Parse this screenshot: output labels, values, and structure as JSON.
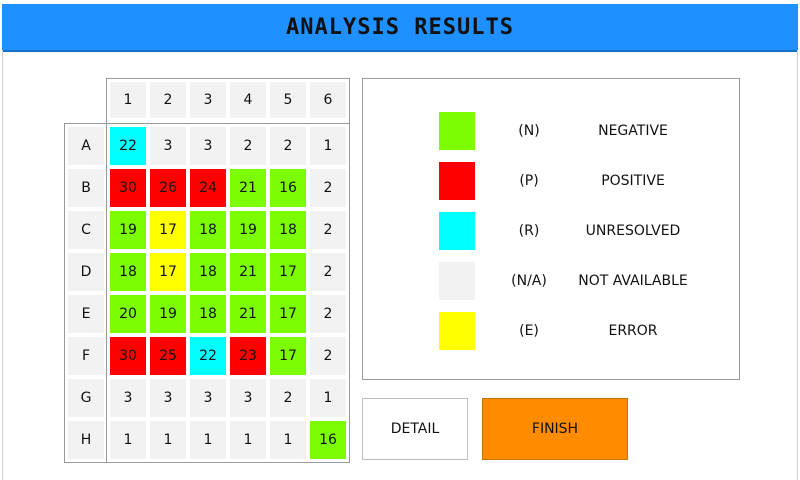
{
  "header": {
    "title": "ANALYSIS RESULTS"
  },
  "colors": {
    "N": "#7cfc00",
    "P": "#ff0000",
    "R": "#00ffff",
    "NA": "#f2f2f2",
    "E": "#ffff00",
    "header_bar": "#1e90ff",
    "finish_button": "#ff8c00"
  },
  "plate": {
    "columns": [
      "1",
      "2",
      "3",
      "4",
      "5",
      "6"
    ],
    "rows": [
      {
        "label": "A",
        "cells": [
          {
            "value": "22",
            "status": "R"
          },
          {
            "value": "3",
            "status": "NA"
          },
          {
            "value": "3",
            "status": "NA"
          },
          {
            "value": "2",
            "status": "NA"
          },
          {
            "value": "2",
            "status": "NA"
          },
          {
            "value": "1",
            "status": "NA"
          }
        ]
      },
      {
        "label": "B",
        "cells": [
          {
            "value": "30",
            "status": "P"
          },
          {
            "value": "26",
            "status": "P"
          },
          {
            "value": "24",
            "status": "P"
          },
          {
            "value": "21",
            "status": "N"
          },
          {
            "value": "16",
            "status": "N"
          },
          {
            "value": "2",
            "status": "NA"
          }
        ]
      },
      {
        "label": "C",
        "cells": [
          {
            "value": "19",
            "status": "N"
          },
          {
            "value": "17",
            "status": "E"
          },
          {
            "value": "18",
            "status": "N"
          },
          {
            "value": "19",
            "status": "N"
          },
          {
            "value": "18",
            "status": "N"
          },
          {
            "value": "2",
            "status": "NA"
          }
        ]
      },
      {
        "label": "D",
        "cells": [
          {
            "value": "18",
            "status": "N"
          },
          {
            "value": "17",
            "status": "E"
          },
          {
            "value": "18",
            "status": "N"
          },
          {
            "value": "21",
            "status": "N"
          },
          {
            "value": "17",
            "status": "N"
          },
          {
            "value": "2",
            "status": "NA"
          }
        ]
      },
      {
        "label": "E",
        "cells": [
          {
            "value": "20",
            "status": "N"
          },
          {
            "value": "19",
            "status": "N"
          },
          {
            "value": "18",
            "status": "N"
          },
          {
            "value": "21",
            "status": "N"
          },
          {
            "value": "17",
            "status": "N"
          },
          {
            "value": "2",
            "status": "NA"
          }
        ]
      },
      {
        "label": "F",
        "cells": [
          {
            "value": "30",
            "status": "P"
          },
          {
            "value": "25",
            "status": "P"
          },
          {
            "value": "22",
            "status": "R"
          },
          {
            "value": "23",
            "status": "P"
          },
          {
            "value": "17",
            "status": "N"
          },
          {
            "value": "2",
            "status": "NA"
          }
        ]
      },
      {
        "label": "G",
        "cells": [
          {
            "value": "3",
            "status": "NA"
          },
          {
            "value": "3",
            "status": "NA"
          },
          {
            "value": "3",
            "status": "NA"
          },
          {
            "value": "3",
            "status": "NA"
          },
          {
            "value": "2",
            "status": "NA"
          },
          {
            "value": "1",
            "status": "NA"
          }
        ]
      },
      {
        "label": "H",
        "cells": [
          {
            "value": "1",
            "status": "NA"
          },
          {
            "value": "1",
            "status": "NA"
          },
          {
            "value": "1",
            "status": "NA"
          },
          {
            "value": "1",
            "status": "NA"
          },
          {
            "value": "1",
            "status": "NA"
          },
          {
            "value": "16",
            "status": "N"
          }
        ]
      }
    ]
  },
  "legend": {
    "items": [
      {
        "status": "N",
        "code": "(N)",
        "name": "NEGATIVE"
      },
      {
        "status": "P",
        "code": "(P)",
        "name": "POSITIVE"
      },
      {
        "status": "R",
        "code": "(R)",
        "name": "UNRESOLVED"
      },
      {
        "status": "NA",
        "code": "(N/A)",
        "name": "NOT AVAILABLE"
      },
      {
        "status": "E",
        "code": "(E)",
        "name": "ERROR"
      }
    ]
  },
  "buttons": {
    "detail": "DETAIL",
    "finish": "FINISH"
  }
}
